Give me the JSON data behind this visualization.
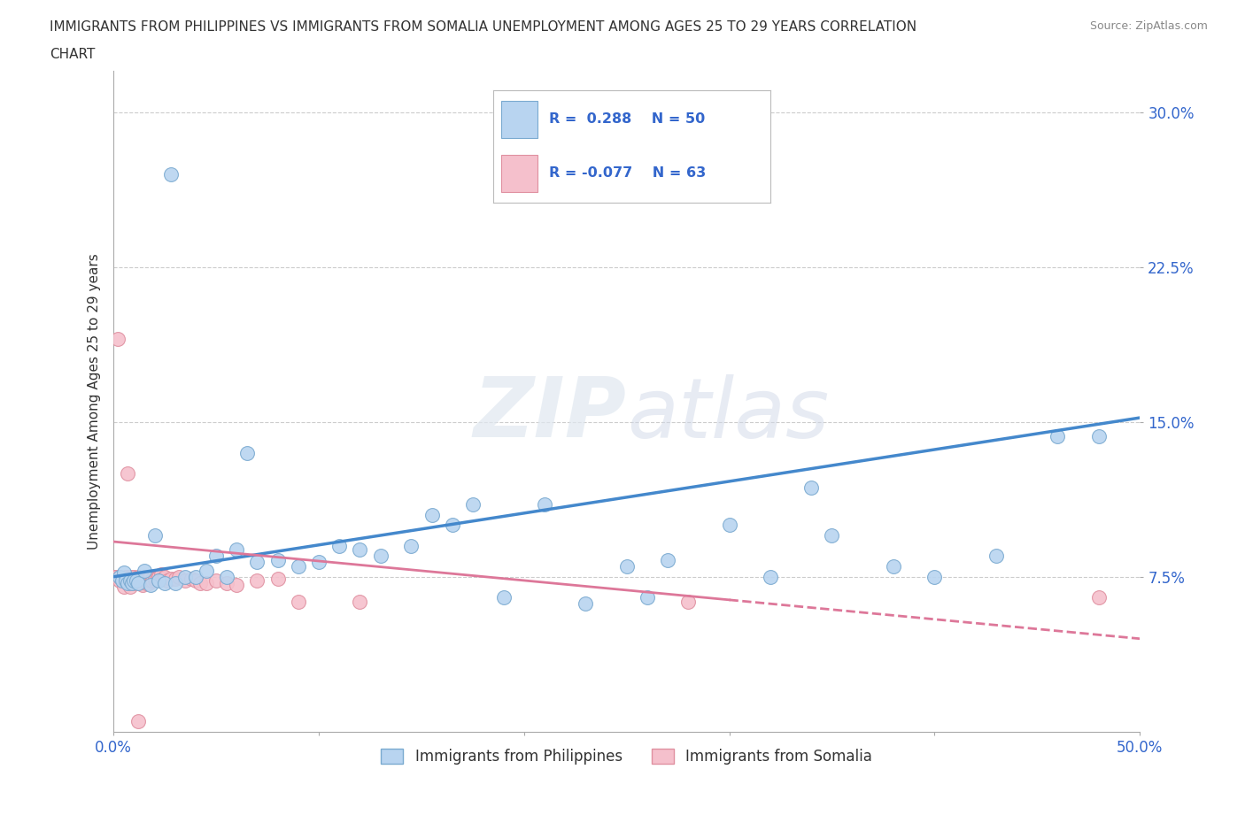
{
  "title_line1": "IMMIGRANTS FROM PHILIPPINES VS IMMIGRANTS FROM SOMALIA UNEMPLOYMENT AMONG AGES 25 TO 29 YEARS CORRELATION",
  "title_line2": "CHART",
  "source": "Source: ZipAtlas.com",
  "ylabel": "Unemployment Among Ages 25 to 29 years",
  "xlim": [
    0.0,
    0.5
  ],
  "ylim": [
    0.0,
    0.32
  ],
  "xticks": [
    0.0,
    0.1,
    0.2,
    0.3,
    0.4,
    0.5
  ],
  "xticklabels": [
    "0.0%",
    "",
    "",
    "",
    "",
    "50.0%"
  ],
  "yticks": [
    0.075,
    0.15,
    0.225,
    0.3
  ],
  "yticklabels": [
    "7.5%",
    "15.0%",
    "22.5%",
    "30.0%"
  ],
  "grid_color": "#cccccc",
  "background_color": "#ffffff",
  "philippines_color": "#b8d4f0",
  "philippines_edge_color": "#7aaad0",
  "somalia_color": "#f5c0cc",
  "somalia_edge_color": "#e090a0",
  "philippines_R": 0.288,
  "philippines_N": 50,
  "somalia_R": -0.077,
  "somalia_N": 63,
  "philippines_line_color": "#4488cc",
  "somalia_line_color": "#dd7799",
  "legend_color": "#3366cc",
  "watermark_line1": "ZIP",
  "watermark_line2": "atlas",
  "philippines_line_x0": 0.0,
  "philippines_line_y0": 0.075,
  "philippines_line_x1": 0.5,
  "philippines_line_y1": 0.152,
  "somalia_line_x0": 0.0,
  "somalia_line_y0": 0.092,
  "somalia_line_x1": 0.5,
  "somalia_line_y1": 0.045,
  "philippines_x": [
    0.003,
    0.004,
    0.005,
    0.006,
    0.007,
    0.008,
    0.009,
    0.01,
    0.011,
    0.012,
    0.015,
    0.018,
    0.02,
    0.022,
    0.025,
    0.028,
    0.03,
    0.035,
    0.04,
    0.045,
    0.05,
    0.055,
    0.06,
    0.065,
    0.07,
    0.08,
    0.09,
    0.1,
    0.11,
    0.12,
    0.13,
    0.145,
    0.155,
    0.165,
    0.175,
    0.19,
    0.21,
    0.23,
    0.25,
    0.26,
    0.27,
    0.3,
    0.32,
    0.34,
    0.35,
    0.38,
    0.4,
    0.43,
    0.46,
    0.48
  ],
  "philippines_y": [
    0.075,
    0.073,
    0.077,
    0.073,
    0.072,
    0.073,
    0.072,
    0.073,
    0.073,
    0.072,
    0.078,
    0.071,
    0.095,
    0.073,
    0.072,
    0.27,
    0.072,
    0.075,
    0.075,
    0.078,
    0.085,
    0.075,
    0.088,
    0.135,
    0.082,
    0.083,
    0.08,
    0.082,
    0.09,
    0.088,
    0.085,
    0.09,
    0.105,
    0.1,
    0.11,
    0.065,
    0.11,
    0.062,
    0.08,
    0.065,
    0.083,
    0.1,
    0.075,
    0.118,
    0.095,
    0.08,
    0.075,
    0.085,
    0.143,
    0.143
  ],
  "somalia_x": [
    0.0,
    0.001,
    0.002,
    0.003,
    0.003,
    0.004,
    0.005,
    0.006,
    0.006,
    0.007,
    0.007,
    0.008,
    0.008,
    0.009,
    0.009,
    0.01,
    0.01,
    0.011,
    0.011,
    0.012,
    0.012,
    0.013,
    0.013,
    0.014,
    0.014,
    0.015,
    0.015,
    0.016,
    0.016,
    0.017,
    0.017,
    0.018,
    0.018,
    0.019,
    0.019,
    0.02,
    0.02,
    0.021,
    0.022,
    0.023,
    0.024,
    0.025,
    0.026,
    0.028,
    0.03,
    0.032,
    0.035,
    0.038,
    0.04,
    0.042,
    0.045,
    0.05,
    0.055,
    0.06,
    0.07,
    0.08,
    0.09,
    0.12,
    0.28,
    0.48,
    0.002,
    0.007,
    0.012
  ],
  "somalia_y": [
    0.075,
    0.075,
    0.074,
    0.073,
    0.075,
    0.074,
    0.07,
    0.073,
    0.075,
    0.072,
    0.074,
    0.07,
    0.075,
    0.072,
    0.074,
    0.073,
    0.075,
    0.072,
    0.073,
    0.073,
    0.075,
    0.072,
    0.074,
    0.071,
    0.074,
    0.073,
    0.075,
    0.072,
    0.073,
    0.074,
    0.072,
    0.073,
    0.075,
    0.074,
    0.073,
    0.073,
    0.074,
    0.074,
    0.075,
    0.076,
    0.074,
    0.075,
    0.073,
    0.074,
    0.074,
    0.075,
    0.073,
    0.074,
    0.073,
    0.072,
    0.072,
    0.073,
    0.072,
    0.071,
    0.073,
    0.074,
    0.063,
    0.063,
    0.063,
    0.065,
    0.19,
    0.125,
    0.005
  ]
}
